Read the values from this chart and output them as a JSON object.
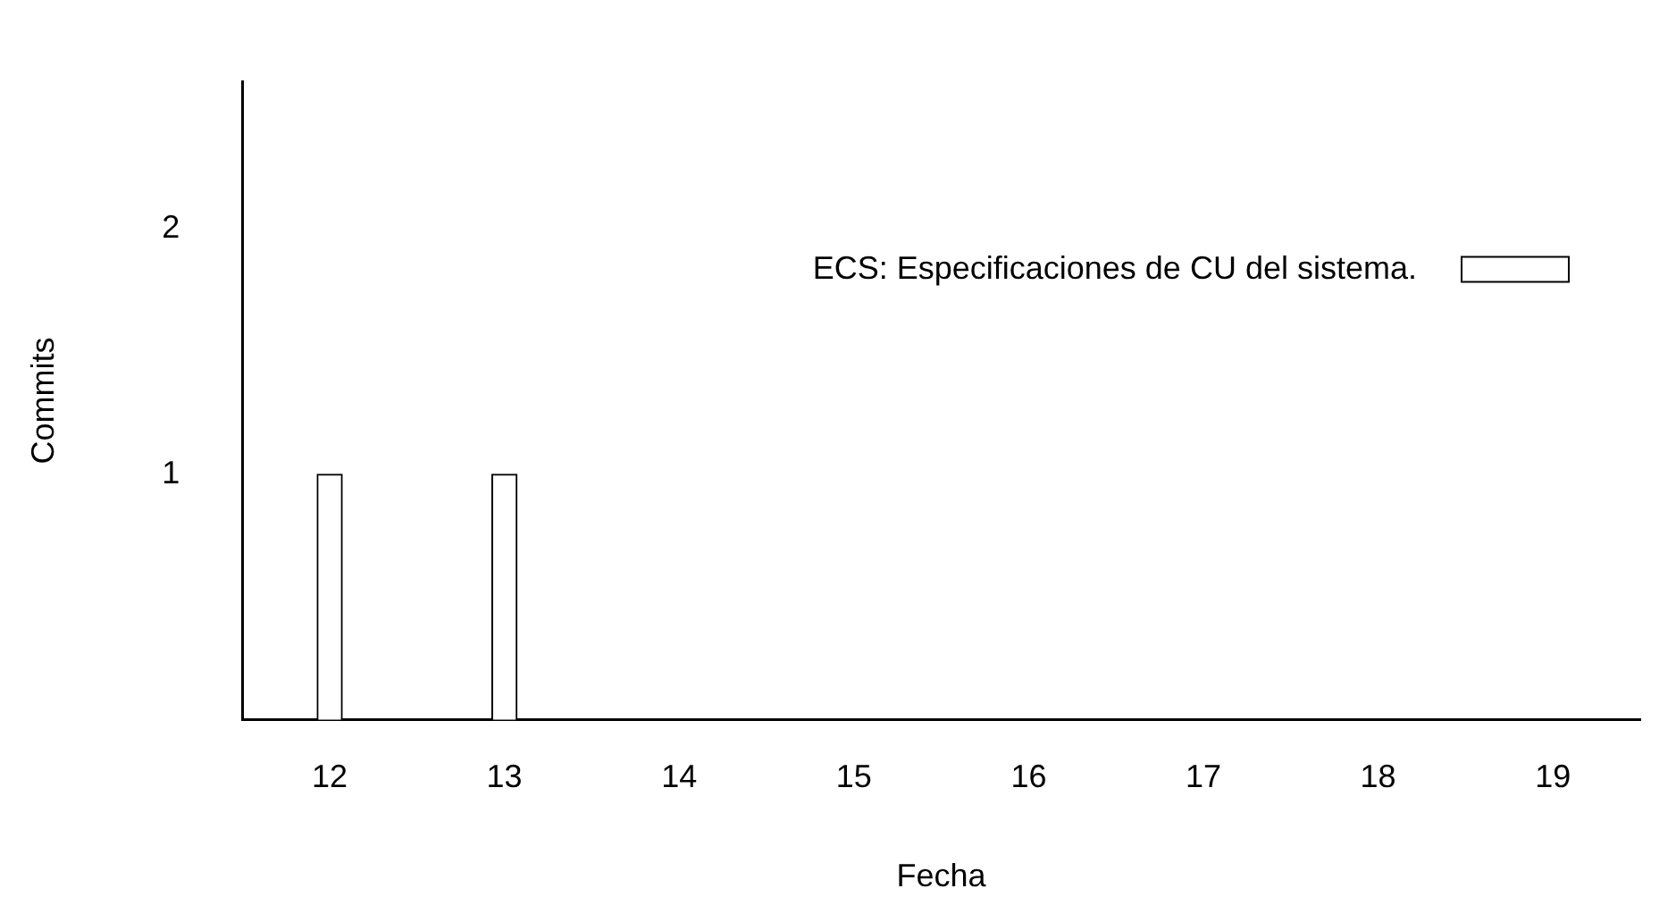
{
  "chart_data": {
    "type": "bar",
    "xlabel": "Fecha",
    "ylabel": "Commits",
    "categories": [
      "12",
      "13",
      "14",
      "15",
      "16",
      "17",
      "18",
      "19"
    ],
    "series": [
      {
        "name": "ECS: Especificaciones de CU del sistema.",
        "color": "#ffffff",
        "values": [
          1,
          1,
          0,
          0,
          0,
          0,
          0,
          0
        ]
      }
    ],
    "ylim": [
      0,
      2.6
    ],
    "yticks": [
      1,
      2
    ],
    "grid": false,
    "legend": "top right"
  }
}
